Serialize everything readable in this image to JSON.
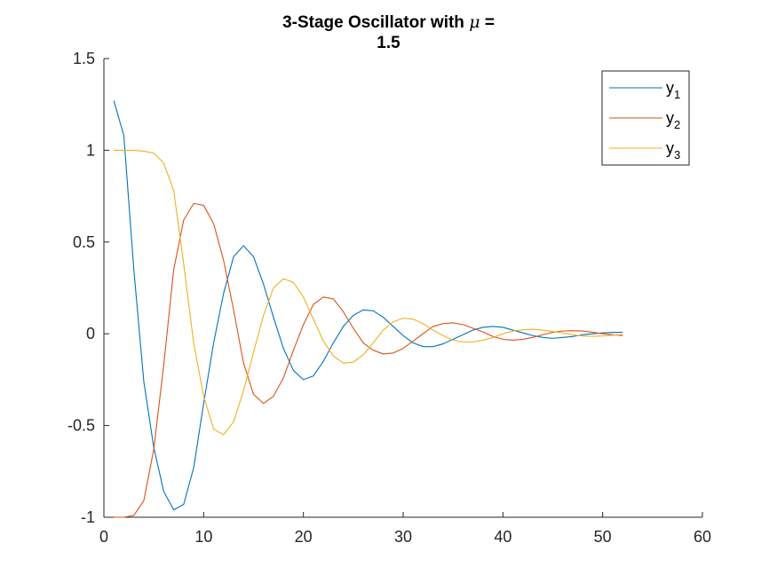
{
  "chart_data": {
    "type": "line",
    "title_line1_prefix": "3-Stage Oscillator with ",
    "title_symbol": "μ",
    "title_line1_suffix": " =",
    "title_line2": "1.5",
    "xlabel": "",
    "ylabel": "",
    "xlim": [
      0,
      60
    ],
    "ylim": [
      -1,
      1.5
    ],
    "x_ticks": [
      0,
      10,
      20,
      30,
      40,
      50,
      60
    ],
    "y_ticks": [
      -1,
      -0.5,
      0,
      0.5,
      1,
      1.5
    ],
    "y_tick_labels": [
      "-1",
      "-0.5",
      "0",
      "0.5",
      "1",
      "1.5"
    ],
    "grid": false,
    "legend_position": "top-right",
    "x": [
      1,
      2,
      3,
      4,
      5,
      6,
      7,
      8,
      9,
      10,
      11,
      12,
      13,
      14,
      15,
      16,
      17,
      18,
      19,
      20,
      21,
      22,
      23,
      24,
      25,
      26,
      27,
      28,
      29,
      30,
      31,
      32,
      33,
      34,
      35,
      36,
      37,
      38,
      39,
      40,
      41,
      42,
      43,
      44,
      45,
      46,
      47,
      48,
      49,
      50,
      51,
      52
    ],
    "series": [
      {
        "name": "y",
        "subscript": "1",
        "color": "#0072BD",
        "values": [
          1.27,
          1.08,
          0.35,
          -0.26,
          -0.62,
          -0.86,
          -0.96,
          -0.93,
          -0.73,
          -0.38,
          -0.05,
          0.22,
          0.42,
          0.48,
          0.42,
          0.27,
          0.09,
          -0.08,
          -0.2,
          -0.25,
          -0.23,
          -0.15,
          -0.05,
          0.04,
          0.1,
          0.13,
          0.125,
          0.09,
          0.04,
          -0.01,
          -0.05,
          -0.07,
          -0.07,
          -0.055,
          -0.03,
          -0.005,
          0.02,
          0.035,
          0.04,
          0.035,
          0.02,
          0.005,
          -0.01,
          -0.02,
          -0.025,
          -0.02,
          -0.015,
          -0.005,
          0.0,
          0.005,
          0.008,
          0.008
        ]
      },
      {
        "name": "y",
        "subscript": "2",
        "color": "#D95319",
        "values": [
          -1.0,
          -1.0,
          -0.99,
          -0.91,
          -0.63,
          -0.17,
          0.35,
          0.62,
          0.71,
          0.7,
          0.6,
          0.4,
          0.13,
          -0.16,
          -0.33,
          -0.38,
          -0.34,
          -0.24,
          -0.09,
          0.05,
          0.16,
          0.2,
          0.19,
          0.12,
          0.03,
          -0.05,
          -0.09,
          -0.11,
          -0.105,
          -0.08,
          -0.04,
          0.0,
          0.04,
          0.055,
          0.06,
          0.05,
          0.03,
          0.01,
          -0.015,
          -0.03,
          -0.035,
          -0.03,
          -0.02,
          -0.005,
          0.008,
          0.015,
          0.017,
          0.015,
          0.008,
          0.0,
          -0.005,
          -0.01
        ]
      },
      {
        "name": "y",
        "subscript": "3",
        "color": "#EDB120",
        "values": [
          1.0,
          1.0,
          1.0,
          0.995,
          0.985,
          0.93,
          0.78,
          0.38,
          -0.05,
          -0.34,
          -0.52,
          -0.55,
          -0.48,
          -0.31,
          -0.1,
          0.1,
          0.25,
          0.3,
          0.28,
          0.2,
          0.08,
          -0.04,
          -0.12,
          -0.16,
          -0.155,
          -0.115,
          -0.05,
          0.02,
          0.065,
          0.085,
          0.08,
          0.055,
          0.02,
          -0.01,
          -0.035,
          -0.045,
          -0.045,
          -0.035,
          -0.02,
          0.0,
          0.015,
          0.022,
          0.025,
          0.02,
          0.012,
          0.004,
          -0.006,
          -0.012,
          -0.014,
          -0.012,
          -0.008,
          -0.004
        ]
      }
    ]
  }
}
